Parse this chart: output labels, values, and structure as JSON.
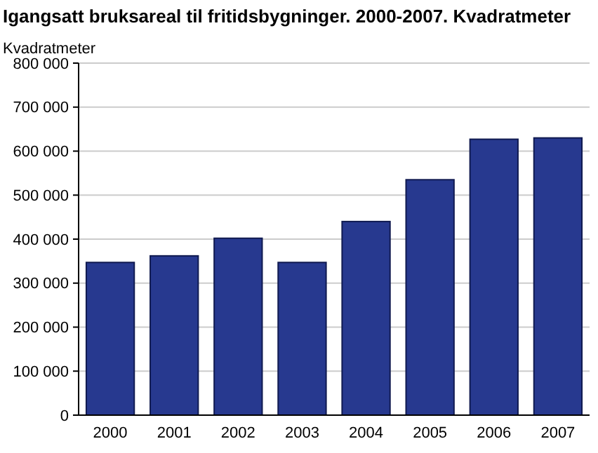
{
  "chart_data": {
    "type": "bar",
    "title": "Igangsatt bruksareal til fritidsbygninger. 2000-2007. Kvadratmeter",
    "ylabel": "Kvadratmeter",
    "categories": [
      "2000",
      "2001",
      "2002",
      "2003",
      "2004",
      "2005",
      "2006",
      "2007"
    ],
    "values": [
      347000,
      362000,
      402000,
      347000,
      440000,
      535000,
      627000,
      630000
    ],
    "color": "#27398f",
    "ylim": [
      0,
      800000
    ],
    "yticks": [
      {
        "value": 0,
        "label": "0"
      },
      {
        "value": 100000,
        "label": "100 000"
      },
      {
        "value": 200000,
        "label": "200 000"
      },
      {
        "value": 300000,
        "label": "300 000"
      },
      {
        "value": 400000,
        "label": "400 000"
      },
      {
        "value": 500000,
        "label": "500 000"
      },
      {
        "value": 600000,
        "label": "600 000"
      },
      {
        "value": 700000,
        "label": "700 000"
      },
      {
        "value": 800000,
        "label": "800 000"
      }
    ],
    "grid": true
  }
}
